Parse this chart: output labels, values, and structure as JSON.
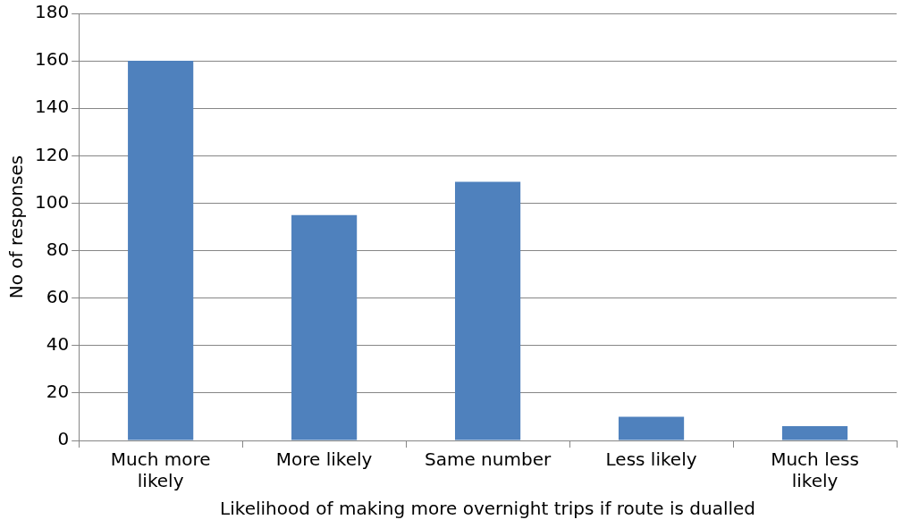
{
  "chart_data": {
    "type": "bar",
    "xlabel": "Likelihood of making more overnight trips if route is dualled",
    "ylabel": "No of responses",
    "categories": [
      "Much more likely",
      "More likely",
      "Same number",
      "Less likely",
      "Much less likely"
    ],
    "values": [
      160,
      95,
      109,
      10,
      6
    ],
    "color": "#4f81bd",
    "ylim": [
      0,
      180
    ],
    "yticks": [
      0,
      20,
      40,
      60,
      80,
      100,
      120,
      140,
      160,
      180
    ],
    "grid": "y",
    "legend": false
  }
}
